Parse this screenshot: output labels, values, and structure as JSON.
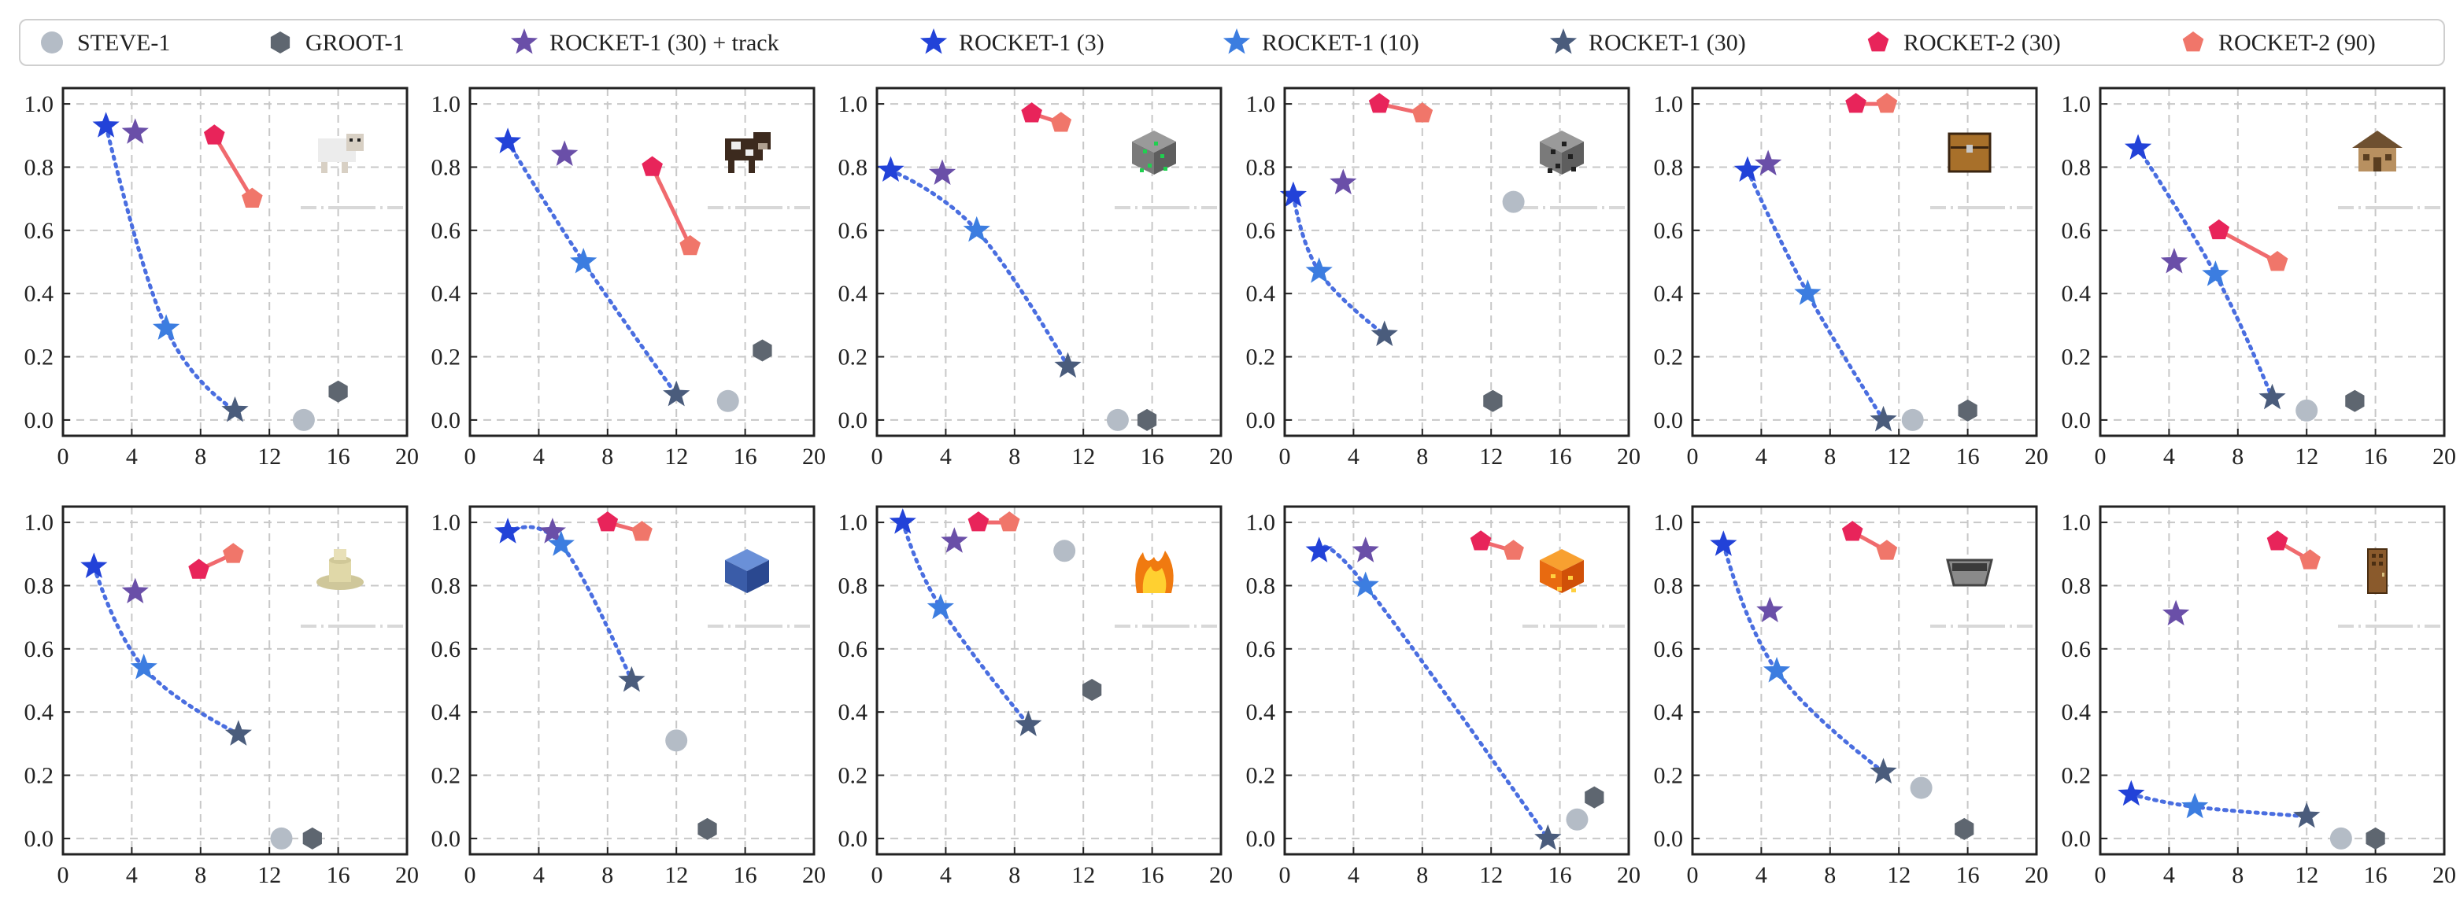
{
  "legend": [
    {
      "name": "STEVE-1",
      "marker": "circle",
      "color": "#b4bcc6"
    },
    {
      "name": "GROOT-1",
      "marker": "hexagon",
      "color": "#5e6670"
    },
    {
      "name": "ROCKET-1 (30) + track",
      "marker": "star",
      "color": "#6a4fa8"
    },
    {
      "name": "ROCKET-1 (3)",
      "marker": "star",
      "color": "#2242d8"
    },
    {
      "name": "ROCKET-1 (10)",
      "marker": "star",
      "color": "#3c7de0"
    },
    {
      "name": "ROCKET-1 (30)",
      "marker": "star",
      "color": "#4a5c7c"
    },
    {
      "name": "ROCKET-2 (30)",
      "marker": "pentagon",
      "color": "#e8245a"
    },
    {
      "name": "ROCKET-2 (90)",
      "marker": "pentagon",
      "color": "#f0766a"
    }
  ],
  "colors": {
    "rocket1_line": "#4a6ee0",
    "rocket2_line": "#f06a6e",
    "grid": "#c8c8c8",
    "axis": "#222222"
  },
  "chart_data": [
    {
      "type": "scatter",
      "icon": "sheep-icon",
      "xlim": [
        0,
        20
      ],
      "ylim": [
        -0.05,
        1.05
      ],
      "xticks": [
        0,
        4,
        8,
        12,
        16,
        20
      ],
      "yticks": [
        "0.0",
        "0.2",
        "0.4",
        "0.6",
        "0.8",
        "1.0"
      ],
      "steve1": [
        14.0,
        0.0
      ],
      "groot1": [
        16.0,
        0.09
      ],
      "rocket1_track": [
        4.2,
        0.91
      ],
      "rocket1": [
        [
          2.5,
          0.93
        ],
        [
          6.0,
          0.29
        ],
        [
          10.0,
          0.03
        ]
      ],
      "rocket2": [
        [
          8.8,
          0.9
        ],
        [
          11.0,
          0.7
        ]
      ]
    },
    {
      "type": "scatter",
      "icon": "cow-icon",
      "xlim": [
        0,
        20
      ],
      "ylim": [
        -0.05,
        1.05
      ],
      "xticks": [
        0,
        4,
        8,
        12,
        16,
        20
      ],
      "yticks": [
        "0.0",
        "0.2",
        "0.4",
        "0.6",
        "0.8",
        "1.0"
      ],
      "steve1": [
        15.0,
        0.06
      ],
      "groot1": [
        17.0,
        0.22
      ],
      "rocket1_track": [
        5.5,
        0.84
      ],
      "rocket1": [
        [
          2.2,
          0.88
        ],
        [
          6.6,
          0.5
        ],
        [
          12.0,
          0.08
        ]
      ],
      "rocket2": [
        [
          10.6,
          0.8
        ],
        [
          12.8,
          0.55
        ]
      ]
    },
    {
      "type": "scatter",
      "icon": "emerald-ore-icon",
      "xlim": [
        0,
        20
      ],
      "ylim": [
        -0.05,
        1.05
      ],
      "xticks": [
        0,
        4,
        8,
        12,
        16,
        20
      ],
      "yticks": [
        "0.0",
        "0.2",
        "0.4",
        "0.6",
        "0.8",
        "1.0"
      ],
      "steve1": [
        14.0,
        0.0
      ],
      "groot1": [
        15.7,
        0.0
      ],
      "rocket1_track": [
        3.8,
        0.78
      ],
      "rocket1": [
        [
          0.8,
          0.79
        ],
        [
          5.8,
          0.6
        ],
        [
          11.1,
          0.17
        ]
      ],
      "rocket2": [
        [
          9.0,
          0.97
        ],
        [
          10.7,
          0.94
        ]
      ]
    },
    {
      "type": "scatter",
      "icon": "coal-ore-icon",
      "xlim": [
        0,
        20
      ],
      "ylim": [
        -0.05,
        1.05
      ],
      "xticks": [
        0,
        4,
        8,
        12,
        16,
        20
      ],
      "yticks": [
        "0.0",
        "0.2",
        "0.4",
        "0.6",
        "0.8",
        "1.0"
      ],
      "steve1": [
        13.3,
        0.69
      ],
      "groot1": [
        12.1,
        0.06
      ],
      "rocket1_track": [
        3.4,
        0.75
      ],
      "rocket1": [
        [
          0.5,
          0.71
        ],
        [
          2.0,
          0.47
        ],
        [
          5.8,
          0.27
        ]
      ],
      "rocket2": [
        [
          5.5,
          1.0
        ],
        [
          8.0,
          0.97
        ]
      ]
    },
    {
      "type": "scatter",
      "icon": "chest-icon",
      "xlim": [
        0,
        20
      ],
      "ylim": [
        -0.05,
        1.05
      ],
      "xticks": [
        0,
        4,
        8,
        12,
        16,
        20
      ],
      "yticks": [
        "0.0",
        "0.2",
        "0.4",
        "0.6",
        "0.8",
        "1.0"
      ],
      "steve1": [
        12.8,
        0.0
      ],
      "groot1": [
        16.0,
        0.03
      ],
      "rocket1_track": [
        4.4,
        0.81
      ],
      "rocket1": [
        [
          3.2,
          0.79
        ],
        [
          6.7,
          0.4
        ],
        [
          11.1,
          0.0
        ]
      ],
      "rocket2": [
        [
          9.5,
          1.0
        ],
        [
          11.3,
          1.0
        ]
      ]
    },
    {
      "type": "scatter",
      "icon": "village-house-icon",
      "xlim": [
        0,
        20
      ],
      "ylim": [
        -0.05,
        1.05
      ],
      "xticks": [
        0,
        4,
        8,
        12,
        16,
        20
      ],
      "yticks": [
        "0.0",
        "0.2",
        "0.4",
        "0.6",
        "0.8",
        "1.0"
      ],
      "steve1": [
        12.0,
        0.03
      ],
      "groot1": [
        14.8,
        0.06
      ],
      "rocket1_track": [
        4.3,
        0.5
      ],
      "rocket1": [
        [
          2.2,
          0.86
        ],
        [
          6.7,
          0.46
        ],
        [
          10.0,
          0.07
        ]
      ],
      "rocket2": [
        [
          6.9,
          0.6
        ],
        [
          10.3,
          0.5
        ]
      ]
    },
    {
      "type": "scatter",
      "icon": "end-stone-icon",
      "xlim": [
        0,
        20
      ],
      "ylim": [
        -0.05,
        1.05
      ],
      "xticks": [
        0,
        4,
        8,
        12,
        16,
        20
      ],
      "yticks": [
        "0.0",
        "0.2",
        "0.4",
        "0.6",
        "0.8",
        "1.0"
      ],
      "steve1": [
        12.7,
        0.0
      ],
      "groot1": [
        14.5,
        0.0
      ],
      "rocket1_track": [
        4.2,
        0.78
      ],
      "rocket1": [
        [
          1.8,
          0.86
        ],
        [
          4.7,
          0.54
        ],
        [
          10.2,
          0.33
        ]
      ],
      "rocket2": [
        [
          7.9,
          0.85
        ],
        [
          9.9,
          0.9
        ]
      ]
    },
    {
      "type": "scatter",
      "icon": "water-block-icon",
      "xlim": [
        0,
        20
      ],
      "ylim": [
        -0.05,
        1.05
      ],
      "xticks": [
        0,
        4,
        8,
        12,
        16,
        20
      ],
      "yticks": [
        "0.0",
        "0.2",
        "0.4",
        "0.6",
        "0.8",
        "1.0"
      ],
      "steve1": [
        12.0,
        0.31
      ],
      "groot1": [
        13.8,
        0.03
      ],
      "rocket1_track": [
        4.8,
        0.97
      ],
      "rocket1": [
        [
          2.2,
          0.97
        ],
        [
          5.3,
          0.93
        ],
        [
          9.4,
          0.5
        ]
      ],
      "rocket2": [
        [
          8.0,
          1.0
        ],
        [
          10.0,
          0.97
        ]
      ]
    },
    {
      "type": "scatter",
      "icon": "fire-icon",
      "xlim": [
        0,
        20
      ],
      "ylim": [
        -0.05,
        1.05
      ],
      "xticks": [
        0,
        4,
        8,
        12,
        16,
        20
      ],
      "yticks": [
        "0.0",
        "0.2",
        "0.4",
        "0.6",
        "0.8",
        "1.0"
      ],
      "steve1": [
        10.9,
        0.91
      ],
      "groot1": [
        12.5,
        0.47
      ],
      "rocket1_track": [
        4.5,
        0.94
      ],
      "rocket1": [
        [
          1.5,
          1.0
        ],
        [
          3.7,
          0.73
        ],
        [
          8.8,
          0.36
        ]
      ],
      "rocket2": [
        [
          5.9,
          1.0
        ],
        [
          7.7,
          1.0
        ]
      ]
    },
    {
      "type": "scatter",
      "icon": "lava-icon",
      "xlim": [
        0,
        20
      ],
      "ylim": [
        -0.05,
        1.05
      ],
      "xticks": [
        0,
        4,
        8,
        12,
        16,
        20
      ],
      "yticks": [
        "0.0",
        "0.2",
        "0.4",
        "0.6",
        "0.8",
        "1.0"
      ],
      "steve1": [
        17.0,
        0.06
      ],
      "groot1": [
        18.0,
        0.13
      ],
      "rocket1_track": [
        4.7,
        0.91
      ],
      "rocket1": [
        [
          2.0,
          0.91
        ],
        [
          4.7,
          0.8
        ],
        [
          15.3,
          0.0
        ]
      ],
      "rocket2": [
        [
          11.4,
          0.94
        ],
        [
          13.3,
          0.91
        ]
      ]
    },
    {
      "type": "scatter",
      "icon": "minecart-icon",
      "xlim": [
        0,
        20
      ],
      "ylim": [
        -0.05,
        1.05
      ],
      "xticks": [
        0,
        4,
        8,
        12,
        16,
        20
      ],
      "yticks": [
        "0.0",
        "0.2",
        "0.4",
        "0.6",
        "0.8",
        "1.0"
      ],
      "steve1": [
        13.3,
        0.16
      ],
      "groot1": [
        15.8,
        0.03
      ],
      "rocket1_track": [
        4.5,
        0.72
      ],
      "rocket1": [
        [
          1.8,
          0.93
        ],
        [
          4.9,
          0.53
        ],
        [
          11.1,
          0.21
        ]
      ],
      "rocket2": [
        [
          9.3,
          0.97
        ],
        [
          11.3,
          0.91
        ]
      ]
    },
    {
      "type": "scatter",
      "icon": "wooden-door-icon",
      "xlim": [
        0,
        20
      ],
      "ylim": [
        -0.05,
        1.05
      ],
      "xticks": [
        0,
        4,
        8,
        12,
        16,
        20
      ],
      "yticks": [
        "0.0",
        "0.2",
        "0.4",
        "0.6",
        "0.8",
        "1.0"
      ],
      "steve1": [
        14.0,
        0.0
      ],
      "groot1": [
        16.0,
        0.0
      ],
      "rocket1_track": [
        4.4,
        0.71
      ],
      "rocket1": [
        [
          1.8,
          0.14
        ],
        [
          5.5,
          0.1
        ],
        [
          12.0,
          0.07
        ]
      ],
      "rocket2": [
        [
          10.3,
          0.94
        ],
        [
          12.2,
          0.88
        ]
      ]
    }
  ]
}
